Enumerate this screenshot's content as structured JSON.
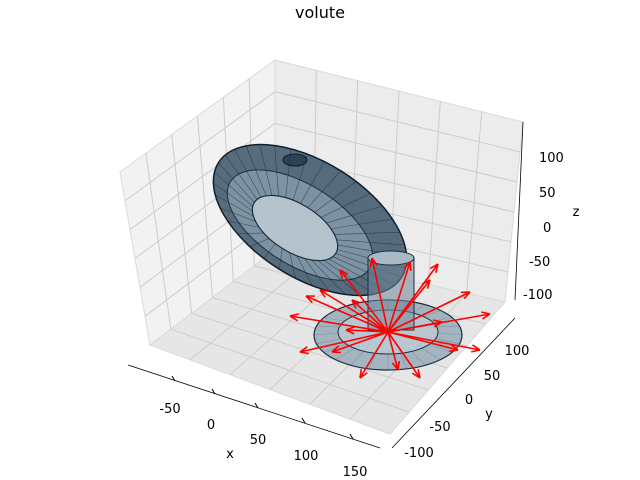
{
  "chart_data": {
    "type": "scatter",
    "subtype": "3d-mesh-with-vector-field",
    "title": "volute",
    "xlabel": "x",
    "ylabel": "y",
    "zlabel": "z",
    "xticks": [
      -50,
      0,
      50,
      100,
      150
    ],
    "yticks": [
      100,
      50,
      0,
      -50,
      -100
    ],
    "zticks": [
      100,
      50,
      0,
      -50,
      -100
    ],
    "xlim": [
      -80,
      160
    ],
    "ylim": [
      -120,
      120
    ],
    "zlim": [
      -120,
      130
    ],
    "grid": true,
    "colors": {
      "mesh_edge": "#1b2f40",
      "mesh_face": "#4b6a80",
      "vectors": "#ff0000",
      "pane_left": "#f2f2f2",
      "pane_back": "#ececec",
      "pane_floor": "#e6e6e6",
      "grid": "#cccccc"
    }
  }
}
